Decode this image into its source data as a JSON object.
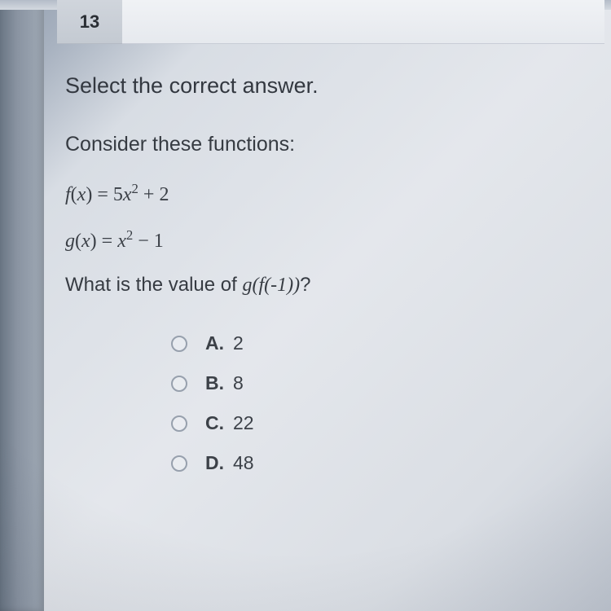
{
  "question_number": "13",
  "instruction": "Select the correct answer.",
  "prompt": "Consider these functions:",
  "equations": {
    "f": {
      "lhs_var": "f",
      "arg": "x",
      "rhs_coeff": "5",
      "rhs_base": "x",
      "rhs_exp": "2",
      "rhs_op": "+",
      "rhs_const": "2"
    },
    "g": {
      "lhs_var": "g",
      "arg": "x",
      "rhs_base": "x",
      "rhs_exp": "2",
      "rhs_op": "−",
      "rhs_const": "1"
    }
  },
  "question_prefix": "What is the value of ",
  "question_expr": "g(f(-1))",
  "question_suffix": "?",
  "choices": [
    {
      "letter": "A.",
      "value": "2"
    },
    {
      "letter": "B.",
      "value": "8"
    },
    {
      "letter": "C.",
      "value": "22"
    },
    {
      "letter": "D.",
      "value": "48"
    }
  ],
  "style": {
    "body_text_color": "#2a2e34",
    "tab_bg": "#c8cdd6",
    "radio_border": "#97a0ad",
    "instruction_fontsize": 27,
    "equation_fontsize": 24,
    "choice_fontsize": 23
  }
}
